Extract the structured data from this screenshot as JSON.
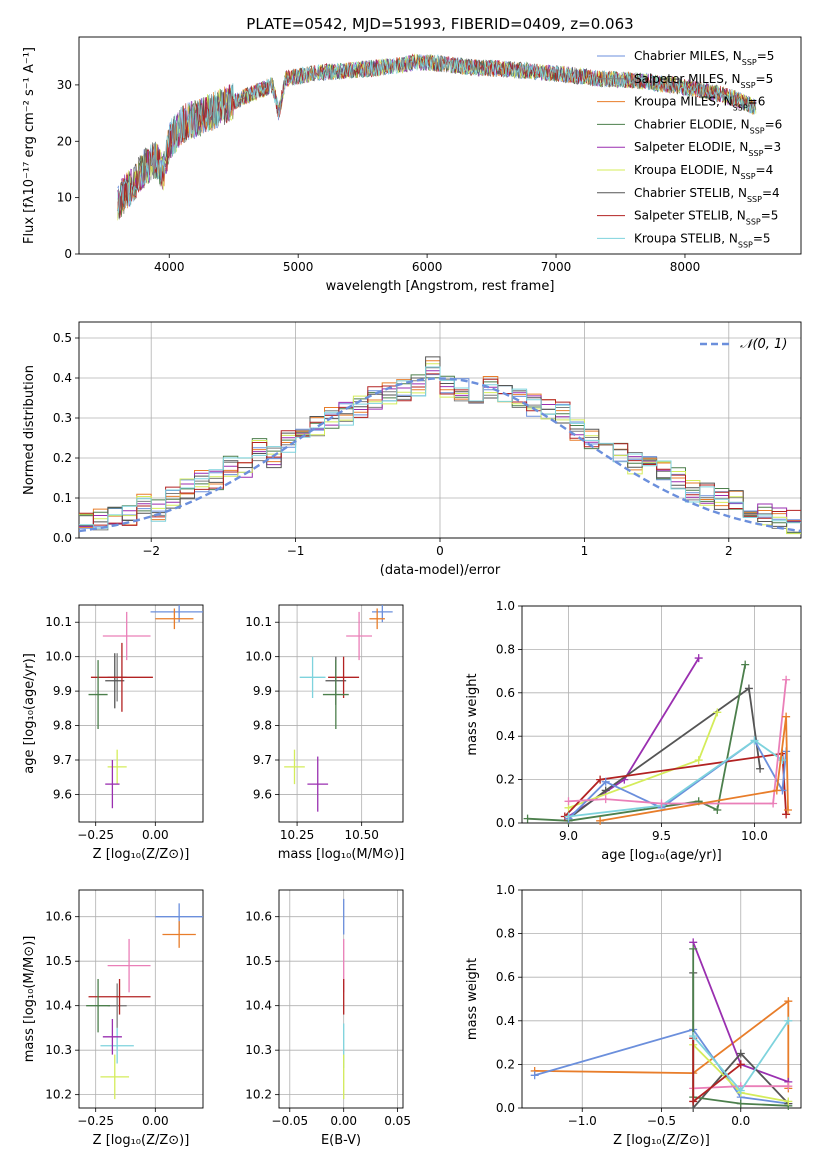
{
  "figure_title": "PLATE=0542, MJD=51993, FIBERID=0409, z=0.063",
  "colors": {
    "Chabrier MILES": "#6b8fdc",
    "Salpeter MILES": "#7f7f7f",
    "Kroupa MILES": "#e87d2a",
    "Chabrier ELODIE": "#4c7f4c",
    "Salpeter ELODIE": "#9a2fb0",
    "Kroupa ELODIE": "#d4ec5a",
    "Chabrier STELIB": "#555555",
    "Salpeter STELIB": "#b22222",
    "Kroupa STELIB": "#7ed3dd",
    "pink": "#ea7fb8",
    "gauss": "#6b8fdc"
  },
  "chart_data": [
    {
      "id": "spectrum",
      "type": "line",
      "xlabel": "wavelength [Angstrom, rest frame]",
      "ylabel": "Flux [fλ10⁻¹⁷ erg cm⁻² s⁻¹ A⁻¹]",
      "xlim": [
        3300,
        8900
      ],
      "ylim": [
        0,
        38.5
      ],
      "xticks": [
        "4000",
        "5000",
        "6000",
        "7000",
        "8000"
      ],
      "yticks": [
        "0",
        "10",
        "20",
        "30"
      ],
      "x": [
        3600,
        3700,
        3800,
        3900,
        3950,
        4000,
        4100,
        4200,
        4300,
        4400,
        4500,
        4600,
        4700,
        4800,
        4850,
        4900,
        5000,
        5100,
        5200,
        5300,
        5400,
        5500,
        5600,
        5700,
        5800,
        5900,
        6000,
        6100,
        6200,
        6300,
        6400,
        6500,
        6600,
        6700,
        6800,
        6900,
        7000,
        7100,
        7200,
        7300,
        7400,
        7500,
        7600,
        7700,
        7800,
        7900,
        8000,
        8100,
        8200,
        8300,
        8400,
        8500,
        8550
      ],
      "values": [
        9,
        12,
        15,
        17,
        14,
        20,
        23,
        24,
        25,
        26,
        27,
        28,
        29,
        30,
        25,
        31,
        31.5,
        32,
        32.2,
        32.4,
        32.6,
        32.8,
        33,
        33.3,
        33.5,
        34,
        34,
        33.8,
        33.5,
        33.2,
        33,
        33,
        32.8,
        32.6,
        32.5,
        32.2,
        32,
        31.8,
        31.5,
        31.2,
        31,
        31,
        30.8,
        30.6,
        30.2,
        30,
        29.6,
        29.2,
        28.7,
        28.2,
        27.5,
        26.5,
        26
      ],
      "series": [
        {
          "name": "Chabrier MILES, N",
          "sub": "SSP",
          "suffix": "=5"
        },
        {
          "name": "Salpeter MILES, N",
          "sub": "SSP",
          "suffix": "=5"
        },
        {
          "name": "Kroupa MILES, N",
          "sub": "SSP",
          "suffix": "=6"
        },
        {
          "name": "Chabrier ELODIE, N",
          "sub": "SSP",
          "suffix": "=6"
        },
        {
          "name": "Salpeter ELODIE, N",
          "sub": "SSP",
          "suffix": "=3"
        },
        {
          "name": "Kroupa ELODIE, N",
          "sub": "SSP",
          "suffix": "=4"
        },
        {
          "name": "Chabrier STELIB, N",
          "sub": "SSP",
          "suffix": "=4"
        },
        {
          "name": "Salpeter STELIB, N",
          "sub": "SSP",
          "suffix": "=5"
        },
        {
          "name": "Kroupa STELIB, N",
          "sub": "SSP",
          "suffix": "=5"
        }
      ]
    },
    {
      "id": "residuals",
      "type": "area",
      "xlabel": "(data-model)/error",
      "ylabel": "Normed distribution",
      "xlim": [
        -2.5,
        2.5
      ],
      "ylim": [
        0,
        0.54
      ],
      "xticks": [
        "−2",
        "−1",
        "0",
        "1",
        "2"
      ],
      "yticks": [
        "0.0",
        "0.1",
        "0.2",
        "0.3",
        "0.4",
        "0.5"
      ],
      "legend": "𝒩(0, 1)",
      "bin_width": 0.1,
      "x": [
        -2.45,
        -2.35,
        -2.25,
        -2.15,
        -2.05,
        -1.95,
        -1.85,
        -1.75,
        -1.65,
        -1.55,
        -1.45,
        -1.35,
        -1.25,
        -1.15,
        -1.05,
        -0.95,
        -0.85,
        -0.75,
        -0.65,
        -0.55,
        -0.45,
        -0.35,
        -0.25,
        -0.15,
        -0.05,
        0.05,
        0.15,
        0.25,
        0.35,
        0.45,
        0.55,
        0.65,
        0.75,
        0.85,
        0.95,
        1.05,
        1.15,
        1.25,
        1.35,
        1.45,
        1.55,
        1.65,
        1.75,
        1.85,
        1.95,
        2.05,
        2.15,
        2.25,
        2.35,
        2.45
      ],
      "values": [
        0.04,
        0.05,
        0.05,
        0.06,
        0.08,
        0.07,
        0.1,
        0.12,
        0.14,
        0.15,
        0.18,
        0.18,
        0.22,
        0.2,
        0.24,
        0.25,
        0.28,
        0.3,
        0.31,
        0.33,
        0.35,
        0.36,
        0.37,
        0.38,
        0.43,
        0.38,
        0.37,
        0.36,
        0.38,
        0.36,
        0.35,
        0.33,
        0.32,
        0.31,
        0.27,
        0.25,
        0.23,
        0.22,
        0.19,
        0.18,
        0.17,
        0.15,
        0.12,
        0.11,
        0.1,
        0.09,
        0.07,
        0.06,
        0.05,
        0.04
      ]
    },
    {
      "id": "age-vs-Z",
      "type": "scatter",
      "xlabel": "Z [log₁₀(Z/Z⊙)]",
      "ylabel": "age  [log₁₀(age/yr)]",
      "xlim": [
        -0.32,
        0.2
      ],
      "ylim": [
        9.52,
        10.15
      ],
      "xticks": [
        "−0.25",
        "0.00"
      ],
      "yticks": [
        "9.6",
        "9.7",
        "9.8",
        "9.9",
        "10.0",
        "10.1"
      ],
      "points": [
        {
          "x": 0.1,
          "y": 10.13,
          "ex": 0.12,
          "ey": 0.03,
          "c": "#6b8fdc"
        },
        {
          "x": 0.08,
          "y": 10.11,
          "ex": 0.08,
          "ey": 0.03,
          "c": "#e87d2a"
        },
        {
          "x": -0.12,
          "y": 10.06,
          "ex": 0.1,
          "ey": 0.07,
          "c": "#ea7fb8"
        },
        {
          "x": -0.16,
          "y": 9.94,
          "ex": 0.04,
          "ey": 0.07,
          "c": "#7f7f7f"
        },
        {
          "x": -0.17,
          "y": 9.93,
          "ex": 0.04,
          "ey": 0.08,
          "c": "#555555"
        },
        {
          "x": -0.14,
          "y": 9.94,
          "ex": 0.13,
          "ey": 0.1,
          "c": "#b22222"
        },
        {
          "x": -0.24,
          "y": 9.89,
          "ex": 0.04,
          "ey": 0.1,
          "c": "#4c7f4c"
        },
        {
          "x": -0.16,
          "y": 9.68,
          "ex": 0.04,
          "ey": 0.05,
          "c": "#d4ec5a"
        },
        {
          "x": -0.18,
          "y": 9.63,
          "ex": 0.03,
          "ey": 0.07,
          "c": "#9a2fb0"
        }
      ]
    },
    {
      "id": "age-vs-mass",
      "type": "scatter",
      "xlabel": "mass [log₁₀(M/M⊙)]",
      "ylabel": "",
      "xlim": [
        10.18,
        10.66
      ],
      "ylim": [
        9.52,
        10.15
      ],
      "xticks": [
        "10.25",
        "10.50"
      ],
      "yticks": [
        "9.6",
        "9.7",
        "9.8",
        "9.9",
        "10.0",
        "10.1"
      ],
      "points": [
        {
          "x": 10.58,
          "y": 10.13,
          "ex": 0.04,
          "ey": 0.03,
          "c": "#6b8fdc"
        },
        {
          "x": 10.56,
          "y": 10.11,
          "ex": 0.03,
          "ey": 0.03,
          "c": "#e87d2a"
        },
        {
          "x": 10.49,
          "y": 10.06,
          "ex": 0.05,
          "ey": 0.07,
          "c": "#ea7fb8"
        },
        {
          "x": 10.4,
          "y": 9.93,
          "ex": 0.04,
          "ey": 0.07,
          "c": "#555555"
        },
        {
          "x": 10.43,
          "y": 9.94,
          "ex": 0.06,
          "ey": 0.06,
          "c": "#b22222"
        },
        {
          "x": 10.31,
          "y": 9.94,
          "ex": 0.05,
          "ey": 0.06,
          "c": "#7ed3dd"
        },
        {
          "x": 10.4,
          "y": 9.89,
          "ex": 0.05,
          "ey": 0.1,
          "c": "#4c7f4c"
        },
        {
          "x": 10.24,
          "y": 9.68,
          "ex": 0.04,
          "ey": 0.05,
          "c": "#d4ec5a"
        },
        {
          "x": 10.33,
          "y": 9.63,
          "ex": 0.04,
          "ey": 0.08,
          "c": "#9a2fb0"
        }
      ]
    },
    {
      "id": "mass-vs-Z",
      "type": "scatter",
      "xlabel": "Z [log₁₀(Z/Z⊙)]",
      "ylabel": "mass [log₁₀(M/M⊙)]",
      "xlim": [
        -0.32,
        0.2
      ],
      "ylim": [
        10.17,
        10.66
      ],
      "xticks": [
        "−0.25",
        "0.00"
      ],
      "yticks": [
        "10.2",
        "10.3",
        "10.4",
        "10.5",
        "10.6"
      ],
      "points": [
        {
          "x": 0.1,
          "y": 10.6,
          "ex": 0.1,
          "ey": 0.03,
          "c": "#6b8fdc"
        },
        {
          "x": 0.1,
          "y": 10.56,
          "ex": 0.07,
          "ey": 0.03,
          "c": "#e87d2a"
        },
        {
          "x": -0.11,
          "y": 10.49,
          "ex": 0.09,
          "ey": 0.06,
          "c": "#ea7fb8"
        },
        {
          "x": -0.16,
          "y": 10.4,
          "ex": 0.04,
          "ey": 0.05,
          "c": "#7f7f7f"
        },
        {
          "x": -0.15,
          "y": 10.42,
          "ex": 0.13,
          "ey": 0.04,
          "c": "#b22222"
        },
        {
          "x": -0.24,
          "y": 10.4,
          "ex": 0.05,
          "ey": 0.06,
          "c": "#4c7f4c"
        },
        {
          "x": -0.16,
          "y": 10.31,
          "ex": 0.07,
          "ey": 0.04,
          "c": "#7ed3dd"
        },
        {
          "x": -0.18,
          "y": 10.33,
          "ex": 0.04,
          "ey": 0.04,
          "c": "#9a2fb0"
        },
        {
          "x": -0.17,
          "y": 10.24,
          "ex": 0.06,
          "ey": 0.05,
          "c": "#d4ec5a"
        }
      ]
    },
    {
      "id": "mass-vs-ebv",
      "type": "scatter",
      "xlabel": "E(B-V)",
      "ylabel": "",
      "xlim": [
        -0.06,
        0.055
      ],
      "ylim": [
        10.17,
        10.66
      ],
      "xticks": [
        "−0.05",
        "0.00",
        "0.05"
      ],
      "yticks": [
        "10.2",
        "10.3",
        "10.4",
        "10.5",
        "10.6"
      ],
      "points": [
        {
          "x": 0.0,
          "y": 10.6,
          "ex": 0,
          "ey": 0.04,
          "c": "#6b8fdc"
        },
        {
          "x": 0.0,
          "y": 10.49,
          "ex": 0,
          "ey": 0.06,
          "c": "#ea7fb8"
        },
        {
          "x": 0.0,
          "y": 10.42,
          "ex": 0,
          "ey": 0.04,
          "c": "#b22222"
        },
        {
          "x": 0.0,
          "y": 10.31,
          "ex": 0,
          "ey": 0.05,
          "c": "#7ed3dd"
        },
        {
          "x": 0.0,
          "y": 10.24,
          "ex": 0,
          "ey": 0.05,
          "c": "#d4ec5a"
        }
      ]
    },
    {
      "id": "weight-vs-age",
      "type": "line",
      "xlabel": "age  [log₁₀(age/yr)]",
      "ylabel": "mass weight",
      "xlim": [
        8.75,
        10.25
      ],
      "ylim": [
        0,
        1.0
      ],
      "xticks": [
        "9.0",
        "9.5",
        "10.0"
      ],
      "yticks": [
        "0.0",
        "0.2",
        "0.4",
        "0.6",
        "0.8",
        "1.0"
      ],
      "series": [
        {
          "c": "#9a2fb0",
          "x": [
            9.0,
            9.3,
            9.7
          ],
          "y": [
            0.03,
            0.2,
            0.76
          ]
        },
        {
          "c": "#555555",
          "x": [
            9.0,
            9.2,
            9.97,
            10.03
          ],
          "y": [
            0.02,
            0.15,
            0.62,
            0.25
          ]
        },
        {
          "c": "#4c7f4c",
          "x": [
            8.78,
            9.0,
            9.7,
            9.8,
            9.95
          ],
          "y": [
            0.02,
            0.01,
            0.1,
            0.06,
            0.73
          ]
        },
        {
          "c": "#d4ec5a",
          "x": [
            9.0,
            9.7,
            9.8
          ],
          "y": [
            0.07,
            0.29,
            0.51
          ]
        },
        {
          "c": "#b22222",
          "x": [
            8.98,
            9.17,
            10.15,
            10.17
          ],
          "y": [
            0.03,
            0.2,
            0.32,
            0.04
          ]
        },
        {
          "c": "#6b8fdc",
          "x": [
            9.0,
            9.2,
            9.5,
            10.0,
            10.15,
            10.17
          ],
          "y": [
            0.02,
            0.19,
            0.07,
            0.38,
            0.15,
            0.33
          ]
        },
        {
          "c": "#7ed3dd",
          "x": [
            9.0,
            9.5,
            10.0,
            10.15
          ],
          "y": [
            0.03,
            0.08,
            0.38,
            0.29
          ]
        },
        {
          "c": "#ea7fb8",
          "x": [
            9.0,
            9.2,
            9.5,
            10.1,
            10.17
          ],
          "y": [
            0.1,
            0.11,
            0.09,
            0.09,
            0.66
          ]
        },
        {
          "c": "#e87d2a",
          "x": [
            9.17,
            10.12,
            10.17,
            10.18
          ],
          "y": [
            0.01,
            0.15,
            0.49,
            0.06
          ]
        }
      ]
    },
    {
      "id": "weight-vs-Z",
      "type": "line",
      "xlabel": "Z [log₁₀(Z/Z⊙)]",
      "ylabel": "mass weight",
      "xlim": [
        -1.38,
        0.38
      ],
      "ylim": [
        0,
        1.0
      ],
      "xticks": [
        "−1.0",
        "−0.5",
        "0.0"
      ],
      "yticks": [
        "0.0",
        "0.2",
        "0.4",
        "0.6",
        "0.8",
        "1.0"
      ],
      "series": [
        {
          "c": "#e87d2a",
          "x": [
            -1.3,
            -0.3,
            0.3,
            0.3
          ],
          "y": [
            0.17,
            0.16,
            0.49,
            0.09
          ]
        },
        {
          "c": "#6b8fdc",
          "x": [
            -1.3,
            -0.3,
            0.0,
            0.3
          ],
          "y": [
            0.15,
            0.36,
            0.05,
            0.02
          ]
        },
        {
          "c": "#9a2fb0",
          "x": [
            -0.3,
            0.0,
            0.3
          ],
          "y": [
            0.76,
            0.2,
            0.12
          ]
        },
        {
          "c": "#555555",
          "x": [
            -0.3,
            -0.3,
            0.0,
            0.3
          ],
          "y": [
            0.62,
            0.0,
            0.25,
            0.02
          ]
        },
        {
          "c": "#4c7f4c",
          "x": [
            -0.3,
            -0.3,
            0.0,
            0.3
          ],
          "y": [
            0.73,
            0.05,
            0.02,
            0.01
          ]
        },
        {
          "c": "#d4ec5a",
          "x": [
            -0.3,
            0.0,
            0.3
          ],
          "y": [
            0.29,
            0.07,
            0.03
          ]
        },
        {
          "c": "#ea7fb8",
          "x": [
            -0.3,
            0.0,
            0.3
          ],
          "y": [
            0.09,
            0.1,
            0.1
          ]
        },
        {
          "c": "#b22222",
          "x": [
            -0.3,
            -0.3,
            0.0
          ],
          "y": [
            0.32,
            0.03,
            0.2
          ]
        },
        {
          "c": "#7ed3dd",
          "x": [
            -0.3,
            0.0,
            0.3
          ],
          "y": [
            0.33,
            0.08,
            0.4
          ]
        }
      ]
    }
  ]
}
